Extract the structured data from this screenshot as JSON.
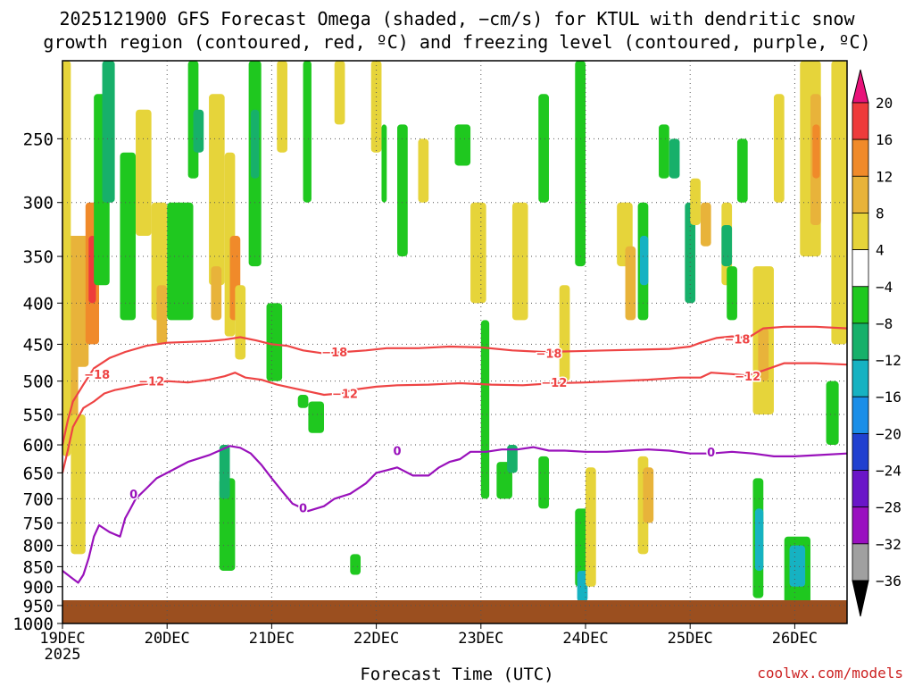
{
  "title_line1": "2025121900 GFS Forecast Omega (shaded, −cm/s) for KTUL with dendritic snow",
  "title_line2": "growth region (contoured, red, ºC) and freezing level (contoured, purple, ºC)",
  "credit": "coolwx.com/models",
  "chart_data": {
    "type": "heatmap",
    "xlabel": "Forecast Time (UTC)",
    "x_ticks": [
      "19DEC",
      "20DEC",
      "21DEC",
      "22DEC",
      "23DEC",
      "24DEC",
      "25DEC",
      "26DEC"
    ],
    "x_tick_year": "2025",
    "x_range_days": [
      0,
      7.5
    ],
    "y_ticks": [
      250,
      300,
      350,
      400,
      450,
      500,
      550,
      600,
      650,
      700,
      750,
      800,
      850,
      900,
      950,
      1000
    ],
    "y_range_hpa": [
      200,
      1000
    ],
    "y_scale": "log-pressure",
    "grid": true,
    "colorbar": {
      "levels": [
        "20",
        "16",
        "12",
        "8",
        "4",
        "−4",
        "−8",
        "−12",
        "−16",
        "−20",
        "−24",
        "−28",
        "−32",
        "−36"
      ],
      "colors": [
        "#e8137a",
        "#ee3b3b",
        "#f08a2a",
        "#e8b33a",
        "#e6d43a",
        "#ffffff",
        "#1fc81f",
        "#17b06a",
        "#16b2c2",
        "#1a8ee8",
        "#2040d0",
        "#6a16c8",
        "#9a10c0",
        "#a0a0a0",
        "#000000"
      ]
    },
    "contour_lines": {
      "dgz_minus18": {
        "label": "−18",
        "color": "#ee4444",
        "label_positions": [
          [
            0.33,
            490
          ],
          [
            2.6,
            460
          ],
          [
            4.65,
            462
          ],
          [
            6.45,
            443
          ]
        ],
        "points": [
          [
            0.0,
            600
          ],
          [
            0.05,
            560
          ],
          [
            0.1,
            530
          ],
          [
            0.2,
            505
          ],
          [
            0.3,
            482
          ],
          [
            0.45,
            468
          ],
          [
            0.6,
            460
          ],
          [
            0.8,
            452
          ],
          [
            1.0,
            448
          ],
          [
            1.2,
            447
          ],
          [
            1.4,
            446
          ],
          [
            1.55,
            444
          ],
          [
            1.7,
            441
          ],
          [
            1.85,
            445
          ],
          [
            2.0,
            450
          ],
          [
            2.15,
            452
          ],
          [
            2.3,
            458
          ],
          [
            2.5,
            462
          ],
          [
            2.7,
            460
          ],
          [
            2.9,
            458
          ],
          [
            3.1,
            455
          ],
          [
            3.4,
            455
          ],
          [
            3.7,
            453
          ],
          [
            4.0,
            454
          ],
          [
            4.3,
            458
          ],
          [
            4.6,
            460
          ],
          [
            4.9,
            459
          ],
          [
            5.2,
            458
          ],
          [
            5.5,
            457
          ],
          [
            5.8,
            456
          ],
          [
            6.0,
            453
          ],
          [
            6.1,
            448
          ],
          [
            6.25,
            442
          ],
          [
            6.4,
            440
          ],
          [
            6.55,
            442
          ],
          [
            6.7,
            430
          ],
          [
            6.9,
            428
          ],
          [
            7.2,
            428
          ],
          [
            7.5,
            430
          ]
        ]
      },
      "dgz_minus12": {
        "label": "−12",
        "color": "#ee4444",
        "label_positions": [
          [
            0.85,
            500
          ],
          [
            2.7,
            518
          ],
          [
            4.7,
            502
          ],
          [
            6.55,
            493
          ]
        ],
        "points": [
          [
            0.0,
            650
          ],
          [
            0.05,
            610
          ],
          [
            0.1,
            570
          ],
          [
            0.2,
            540
          ],
          [
            0.3,
            530
          ],
          [
            0.4,
            518
          ],
          [
            0.5,
            513
          ],
          [
            0.6,
            510
          ],
          [
            0.75,
            505
          ],
          [
            1.0,
            500
          ],
          [
            1.2,
            502
          ],
          [
            1.4,
            498
          ],
          [
            1.55,
            493
          ],
          [
            1.65,
            488
          ],
          [
            1.75,
            495
          ],
          [
            1.9,
            498
          ],
          [
            2.05,
            505
          ],
          [
            2.2,
            510
          ],
          [
            2.35,
            515
          ],
          [
            2.5,
            520
          ],
          [
            2.65,
            518
          ],
          [
            2.8,
            512
          ],
          [
            3.0,
            508
          ],
          [
            3.2,
            506
          ],
          [
            3.5,
            505
          ],
          [
            3.8,
            503
          ],
          [
            4.1,
            505
          ],
          [
            4.4,
            506
          ],
          [
            4.7,
            503
          ],
          [
            5.0,
            502
          ],
          [
            5.3,
            500
          ],
          [
            5.6,
            498
          ],
          [
            5.9,
            495
          ],
          [
            6.1,
            495
          ],
          [
            6.2,
            488
          ],
          [
            6.4,
            490
          ],
          [
            6.55,
            492
          ],
          [
            6.7,
            485
          ],
          [
            6.9,
            475
          ],
          [
            7.2,
            475
          ],
          [
            7.5,
            477
          ]
        ]
      },
      "freezing_level": {
        "label": "0",
        "color": "#9911bb",
        "label_positions": [
          [
            0.68,
            690
          ],
          [
            2.3,
            718
          ],
          [
            3.2,
            610
          ],
          [
            6.2,
            612
          ]
        ],
        "points": [
          [
            0.0,
            860
          ],
          [
            0.1,
            880
          ],
          [
            0.15,
            890
          ],
          [
            0.2,
            870
          ],
          [
            0.25,
            830
          ],
          [
            0.3,
            780
          ],
          [
            0.35,
            755
          ],
          [
            0.45,
            770
          ],
          [
            0.55,
            780
          ],
          [
            0.6,
            740
          ],
          [
            0.65,
            720
          ],
          [
            0.7,
            700
          ],
          [
            0.8,
            680
          ],
          [
            0.9,
            660
          ],
          [
            1.0,
            650
          ],
          [
            1.2,
            630
          ],
          [
            1.4,
            618
          ],
          [
            1.5,
            610
          ],
          [
            1.6,
            602
          ],
          [
            1.7,
            605
          ],
          [
            1.8,
            615
          ],
          [
            1.9,
            635
          ],
          [
            2.0,
            660
          ],
          [
            2.1,
            685
          ],
          [
            2.2,
            710
          ],
          [
            2.35,
            725
          ],
          [
            2.5,
            715
          ],
          [
            2.6,
            700
          ],
          [
            2.75,
            690
          ],
          [
            2.9,
            670
          ],
          [
            3.0,
            650
          ],
          [
            3.1,
            645
          ],
          [
            3.2,
            640
          ],
          [
            3.35,
            655
          ],
          [
            3.5,
            655
          ],
          [
            3.6,
            640
          ],
          [
            3.7,
            630
          ],
          [
            3.8,
            625
          ],
          [
            3.9,
            612
          ],
          [
            4.05,
            612
          ],
          [
            4.2,
            608
          ],
          [
            4.35,
            608
          ],
          [
            4.5,
            604
          ],
          [
            4.65,
            610
          ],
          [
            4.8,
            610
          ],
          [
            5.0,
            612
          ],
          [
            5.2,
            612
          ],
          [
            5.4,
            610
          ],
          [
            5.6,
            608
          ],
          [
            5.8,
            610
          ],
          [
            6.0,
            615
          ],
          [
            6.2,
            615
          ],
          [
            6.4,
            612
          ],
          [
            6.6,
            615
          ],
          [
            6.8,
            620
          ],
          [
            7.0,
            620
          ],
          [
            7.2,
            618
          ],
          [
            7.5,
            615
          ]
        ]
      }
    },
    "shading_cells": [
      [
        0.05,
        0.25,
        330,
        480,
        8
      ],
      [
        0.22,
        0.35,
        300,
        450,
        12
      ],
      [
        0.25,
        0.32,
        330,
        400,
        16
      ],
      [
        0.05,
        0.15,
        400,
        600,
        8
      ],
      [
        0.08,
        0.22,
        550,
        820,
        4
      ],
      [
        0.0,
        0.08,
        200,
        620,
        4
      ],
      [
        0.3,
        0.45,
        220,
        380,
        -4
      ],
      [
        0.38,
        0.5,
        200,
        300,
        -8
      ],
      [
        0.55,
        0.7,
        260,
        420,
        -4
      ],
      [
        0.7,
        0.85,
        230,
        330,
        4
      ],
      [
        0.85,
        1.0,
        300,
        420,
        4
      ],
      [
        0.9,
        1.0,
        380,
        450,
        8
      ],
      [
        1.0,
        1.25,
        300,
        420,
        -4
      ],
      [
        1.2,
        1.3,
        200,
        280,
        -4
      ],
      [
        1.25,
        1.35,
        230,
        260,
        -8
      ],
      [
        1.4,
        1.55,
        220,
        380,
        4
      ],
      [
        1.42,
        1.52,
        360,
        420,
        8
      ],
      [
        1.55,
        1.65,
        260,
        440,
        4
      ],
      [
        1.6,
        1.7,
        330,
        420,
        12
      ],
      [
        1.5,
        1.65,
        660,
        860,
        -4
      ],
      [
        1.5,
        1.6,
        600,
        700,
        -8
      ],
      [
        1.65,
        1.75,
        380,
        470,
        4
      ],
      [
        1.78,
        1.9,
        200,
        360,
        -4
      ],
      [
        1.8,
        1.88,
        230,
        280,
        -8
      ],
      [
        1.95,
        2.1,
        400,
        500,
        -4
      ],
      [
        2.05,
        2.15,
        200,
        260,
        4
      ],
      [
        2.3,
        2.38,
        200,
        300,
        -4
      ],
      [
        2.25,
        2.35,
        520,
        540,
        -4
      ],
      [
        2.35,
        2.5,
        530,
        580,
        -4
      ],
      [
        2.6,
        2.7,
        200,
        240,
        4
      ],
      [
        2.95,
        3.05,
        200,
        260,
        4
      ],
      [
        2.75,
        2.85,
        820,
        870,
        -4
      ],
      [
        3.05,
        3.1,
        240,
        300,
        -4
      ],
      [
        3.2,
        3.3,
        240,
        350,
        -4
      ],
      [
        3.4,
        3.5,
        250,
        300,
        4
      ],
      [
        3.75,
        3.9,
        240,
        270,
        -4
      ],
      [
        3.9,
        4.05,
        300,
        400,
        4
      ],
      [
        4.0,
        4.08,
        420,
        700,
        -4
      ],
      [
        4.15,
        4.3,
        630,
        700,
        -4
      ],
      [
        4.25,
        4.35,
        600,
        650,
        -8
      ],
      [
        4.3,
        4.45,
        300,
        420,
        4
      ],
      [
        4.55,
        4.65,
        220,
        300,
        -4
      ],
      [
        4.55,
        4.65,
        620,
        720,
        -4
      ],
      [
        4.75,
        4.85,
        380,
        500,
        4
      ],
      [
        4.9,
        5.0,
        200,
        360,
        -4
      ],
      [
        4.9,
        5.05,
        720,
        900,
        -4
      ],
      [
        4.92,
        5.02,
        860,
        940,
        -12
      ],
      [
        5.0,
        5.1,
        640,
        900,
        4
      ],
      [
        5.3,
        5.45,
        300,
        360,
        4
      ],
      [
        5.38,
        5.48,
        340,
        420,
        8
      ],
      [
        5.5,
        5.6,
        300,
        420,
        -4
      ],
      [
        5.52,
        5.6,
        330,
        380,
        -12
      ],
      [
        5.5,
        5.6,
        620,
        820,
        4
      ],
      [
        5.55,
        5.65,
        640,
        750,
        8
      ],
      [
        5.7,
        5.8,
        240,
        280,
        -4
      ],
      [
        5.8,
        5.9,
        250,
        280,
        -8
      ],
      [
        5.95,
        6.05,
        300,
        400,
        -8
      ],
      [
        6.0,
        6.1,
        280,
        320,
        4
      ],
      [
        6.1,
        6.2,
        300,
        340,
        8
      ],
      [
        6.3,
        6.4,
        300,
        380,
        4
      ],
      [
        6.3,
        6.4,
        320,
        360,
        -8
      ],
      [
        6.35,
        6.45,
        360,
        420,
        -4
      ],
      [
        6.45,
        6.55,
        250,
        300,
        -4
      ],
      [
        6.6,
        6.8,
        360,
        550,
        4
      ],
      [
        6.65,
        6.75,
        430,
        500,
        8
      ],
      [
        6.6,
        6.7,
        660,
        930,
        -4
      ],
      [
        6.62,
        6.7,
        720,
        860,
        -12
      ],
      [
        6.8,
        6.9,
        220,
        300,
        4
      ],
      [
        6.9,
        7.15,
        780,
        950,
        -4
      ],
      [
        6.95,
        7.1,
        800,
        900,
        -12
      ],
      [
        7.05,
        7.25,
        200,
        350,
        4
      ],
      [
        7.15,
        7.25,
        220,
        320,
        8
      ],
      [
        7.17,
        7.24,
        240,
        280,
        12
      ],
      [
        7.35,
        7.5,
        200,
        450,
        4
      ],
      [
        7.3,
        7.42,
        500,
        600,
        -4
      ]
    ]
  }
}
